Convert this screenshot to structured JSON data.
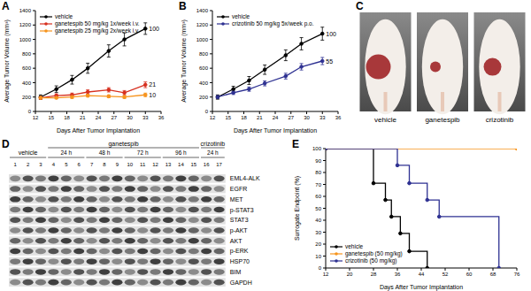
{
  "chart_data": [
    {
      "panel": "A",
      "type": "line",
      "x": [
        13,
        16,
        19,
        22,
        26,
        29,
        33
      ],
      "xlim": [
        12,
        36
      ],
      "xticks": [
        12,
        15,
        18,
        21,
        24,
        27,
        30,
        33,
        36
      ],
      "ylim": [
        0,
        1400
      ],
      "yticks": [
        0,
        200,
        400,
        600,
        800,
        1000,
        1200,
        1400
      ],
      "x_label": "Days After Tumor Implantation",
      "y_label": "Average Tumor Volume (mm³)",
      "legend": "top-left",
      "grid": false,
      "series": [
        {
          "name": "vehicle",
          "color": "#000000",
          "marker": "circle",
          "values": [
            200,
            310,
            440,
            600,
            840,
            1000,
            1150
          ],
          "errors": [
            30,
            45,
            60,
            70,
            85,
            90,
            80
          ],
          "end_label": "100"
        },
        {
          "name": "ganetespib 50 mg/kg 1x/week i.v.",
          "color": "#d7301f",
          "marker": "circle",
          "values": [
            190,
            220,
            230,
            270,
            300,
            260,
            370
          ],
          "errors": [
            20,
            25,
            25,
            30,
            30,
            30,
            40
          ],
          "end_label": "21"
        },
        {
          "name": "ganetespib 25 mg/kg 2x/week i.v.",
          "color": "#f7941d",
          "marker": "circle",
          "values": [
            190,
            190,
            200,
            220,
            210,
            200,
            230
          ],
          "errors": [
            15,
            15,
            20,
            20,
            20,
            20,
            25
          ],
          "end_label": "10"
        }
      ]
    },
    {
      "panel": "B",
      "type": "line",
      "x": [
        13,
        16,
        19,
        22,
        26,
        29,
        33
      ],
      "xlim": [
        12,
        36
      ],
      "xticks": [
        12,
        15,
        18,
        21,
        24,
        27,
        30,
        33,
        36
      ],
      "ylim": [
        0,
        1400
      ],
      "yticks": [
        0,
        200,
        400,
        600,
        800,
        1000,
        1200,
        1400
      ],
      "x_label": "Days After Tumor Implantation",
      "y_label": "Average Tumor Volume (mm³)",
      "legend": "top-left",
      "grid": false,
      "series": [
        {
          "name": "vehicle",
          "color": "#000000",
          "marker": "circle",
          "values": [
            200,
            310,
            430,
            580,
            780,
            940,
            1080
          ],
          "errors": [
            30,
            40,
            55,
            65,
            75,
            85,
            90
          ],
          "end_label": "100"
        },
        {
          "name": "crizotinib 50 mg/kg 5x/week p.o.",
          "color": "#2e3192",
          "marker": "circle",
          "values": [
            200,
            260,
            310,
            390,
            490,
            620,
            700
          ],
          "errors": [
            20,
            25,
            30,
            35,
            40,
            45,
            50
          ],
          "end_label": "55"
        }
      ]
    },
    {
      "panel": "E",
      "type": "line",
      "line_style": "step",
      "xlim": [
        12,
        76
      ],
      "xticks": [
        12,
        20,
        28,
        36,
        44,
        52,
        60,
        68,
        76
      ],
      "ylim": [
        0,
        100
      ],
      "yticks": [
        0,
        10,
        20,
        30,
        40,
        50,
        60,
        70,
        80,
        90,
        100
      ],
      "x_label": "Days After Tumor Implantation",
      "y_label": "Surrogate Endpoint (%)",
      "legend": "bottom-left",
      "grid": false,
      "series": [
        {
          "name": "vehicle",
          "color": "#000000",
          "marker": "circle",
          "x": [
            12,
            28,
            32,
            34,
            37,
            40,
            46
          ],
          "values": [
            100,
            71,
            57,
            43,
            29,
            14,
            0
          ]
        },
        {
          "name": "ganetespib (50 mg/kg)",
          "color": "#f7941d",
          "marker": "circle",
          "x": [
            12,
            76
          ],
          "values": [
            100,
            100
          ]
        },
        {
          "name": "crizotinib (50 mg/kg)",
          "color": "#2e3192",
          "marker": "circle",
          "x": [
            12,
            36,
            40,
            46,
            50,
            70
          ],
          "values": [
            100,
            86,
            71,
            57,
            43,
            0
          ]
        }
      ]
    }
  ],
  "photos": {
    "panel": "C",
    "labels": [
      "vehicle",
      "ganetespib",
      "crizotinib"
    ]
  },
  "blot": {
    "panel": "D",
    "groups": [
      {
        "label": "vehicle",
        "lanes": [
          1,
          2,
          3
        ]
      },
      {
        "label": "ganetespib",
        "subgroups": [
          {
            "label": "24 h",
            "lanes": [
              4,
              5,
              6
            ]
          },
          {
            "label": "48 h",
            "lanes": [
              7,
              8,
              9
            ]
          },
          {
            "label": "72 h",
            "lanes": [
              10,
              11,
              12
            ]
          },
          {
            "label": "96 h",
            "lanes": [
              13,
              14,
              15
            ]
          }
        ]
      },
      {
        "label": "crizotinib",
        "subgroups": [
          {
            "label": "24 h",
            "lanes": [
              16,
              17
            ]
          }
        ]
      }
    ],
    "rows": [
      "EML4-ALK",
      "EGFR",
      "MET",
      "p-STAT3",
      "STAT3",
      "p-AKT",
      "AKT",
      "p-ERK",
      "HSP70",
      "BIM",
      "GAPDH"
    ]
  }
}
